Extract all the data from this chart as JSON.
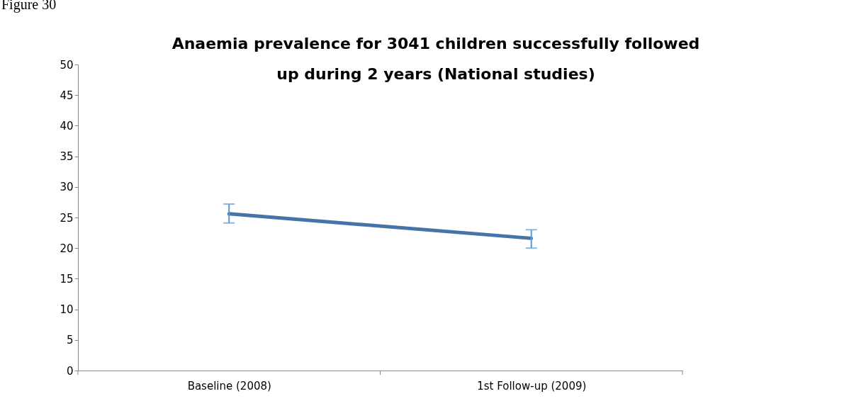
{
  "chart_data": {
    "type": "line",
    "title": "Anaemia prevalence for 3041 children successfully followed\nup during 2 years (National studies)",
    "categories": [
      "Baseline (2008)",
      "1st Follow-up (2009)"
    ],
    "series": [
      {
        "color": "#4674a8",
        "values": [
          25.6,
          21.6
        ],
        "errors": [
          [
            24.1,
            27.2
          ],
          [
            20.0,
            23.0
          ]
        ]
      }
    ],
    "ylim": [
      0,
      50
    ],
    "yticks": [
      0,
      5,
      10,
      15,
      20,
      25,
      30,
      35,
      40,
      45,
      50
    ],
    "grid": false,
    "marker": "none",
    "line_style": "solid",
    "annotations": [
      "Figure 30"
    ]
  }
}
